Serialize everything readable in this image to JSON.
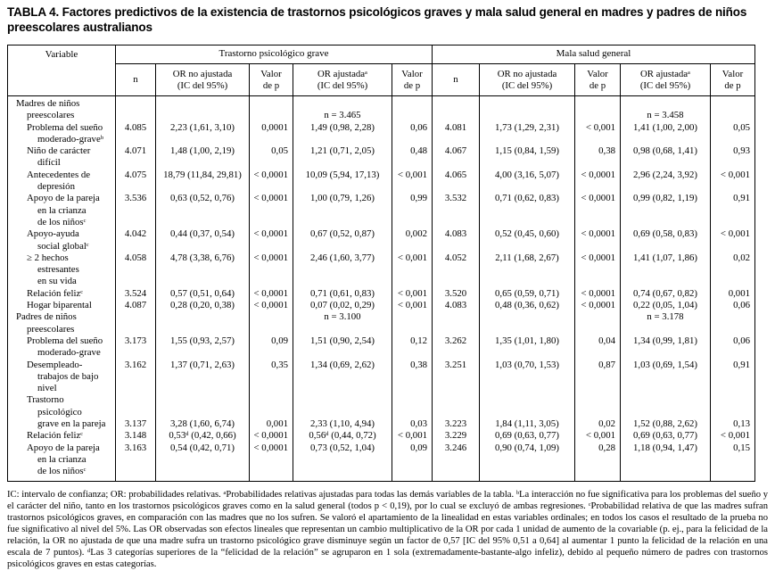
{
  "title": "TABLA 4. Factores predictivos de la existencia de trastornos psicológicos graves y mala salud general en madres y padres de niños preescolares australianos",
  "table": {
    "variable_header": "Variable",
    "groups": [
      {
        "label": "Trastorno psicológico grave"
      },
      {
        "label": "Mala salud general"
      }
    ],
    "subheaders": [
      [
        "n"
      ],
      [
        "OR no ajustada",
        "(IC del 95%)"
      ],
      [
        "Valor",
        "de p"
      ],
      [
        "OR ajustadaᵃ",
        "(IC del 95%)"
      ],
      [
        "Valor",
        "de p"
      ]
    ],
    "rows": [
      {
        "type": "section",
        "valign": "bottom",
        "label": [
          [
            0,
            "Madres de niños"
          ],
          [
            1,
            "preescolares"
          ]
        ],
        "cells": [
          "",
          "",
          "",
          "n = 3.465",
          "",
          "",
          "",
          "",
          "n = 3.458",
          ""
        ]
      },
      {
        "type": "data",
        "valign": "top",
        "label": [
          [
            1,
            "Problema del sueño"
          ],
          [
            2,
            "moderado-graveᵇ"
          ]
        ],
        "cells": [
          "4.085",
          "2,23 (1,61, 3,10)",
          "0,0001",
          "1,49 (0,98, 2,28)",
          "0,06",
          "4.081",
          "1,73 (1,29, 2,31)",
          "< 0,001",
          "1,41 (1,00, 2,00)",
          "0,05"
        ]
      },
      {
        "type": "data",
        "valign": "top",
        "label": [
          [
            1,
            "Niño de carácter"
          ],
          [
            2,
            "difícil"
          ]
        ],
        "cells": [
          "4.071",
          "1,48 (1,00, 2,19)",
          "0,05",
          "1,21 (0,71, 2,05)",
          "0,48",
          "4.067",
          "1,15 (0,84, 1,59)",
          "0,38",
          "0,98 (0,68, 1,41)",
          "0,93"
        ]
      },
      {
        "type": "data",
        "valign": "top",
        "label": [
          [
            1,
            "Antecedentes de"
          ],
          [
            2,
            "depresión"
          ]
        ],
        "cells": [
          "4.075",
          "18,79 (11,84, 29,81)",
          "< 0,0001",
          "10,09 (5,94, 17,13)",
          "< 0,001",
          "4.065",
          "4,00 (3,16, 5,07)",
          "< 0,0001",
          "2,96 (2,24, 3,92)",
          "< 0,001"
        ]
      },
      {
        "type": "data",
        "valign": "top",
        "label": [
          [
            1,
            "Apoyo de la pareja"
          ],
          [
            2,
            "en la crianza"
          ],
          [
            2,
            "de los niñosᶜ"
          ]
        ],
        "cells": [
          "3.536",
          "0,63 (0,52, 0,76)",
          "< 0,0001",
          "1,00 (0,79, 1,26)",
          "0,99",
          "3.532",
          "0,71 (0,62, 0,83)",
          "< 0,0001",
          "0,99 (0,82, 1,19)",
          "0,91"
        ]
      },
      {
        "type": "data",
        "valign": "top",
        "label": [
          [
            1,
            "Apoyo-ayuda"
          ],
          [
            2,
            "social globalᶜ"
          ]
        ],
        "cells": [
          "4.042",
          "0,44 (0,37, 0,54)",
          "< 0,0001",
          "0,67 (0,52, 0,87)",
          "0,002",
          "4.083",
          "0,52 (0,45, 0,60)",
          "< 0,0001",
          "0,69 (0,58, 0,83)",
          "< 0,001"
        ]
      },
      {
        "type": "data",
        "valign": "top",
        "label": [
          [
            1,
            "≥ 2 hechos"
          ],
          [
            2,
            "estresantes"
          ],
          [
            2,
            "en su vida"
          ]
        ],
        "cells": [
          "4.058",
          "4,78 (3,38, 6,76)",
          "< 0,0001",
          "2,46 (1,60, 3,77)",
          "< 0,001",
          "4.052",
          "2,11 (1,68, 2,67)",
          "< 0,0001",
          "1,41 (1,07, 1,86)",
          "0,02"
        ]
      },
      {
        "type": "data",
        "valign": "top",
        "label": [
          [
            1,
            "Relación felizᶜ"
          ]
        ],
        "cells": [
          "3.524",
          "0,57 (0,51, 0,64)",
          "< 0,0001",
          "0,71 (0,61, 0,83)",
          "< 0,001",
          "3.520",
          "0,65 (0,59, 0,71)",
          "< 0,0001",
          "0,74 (0,67, 0,82)",
          "0,001"
        ]
      },
      {
        "type": "data",
        "valign": "top",
        "label": [
          [
            1,
            "Hogar biparental"
          ]
        ],
        "cells": [
          "4.087",
          "0,28 (0,20, 0,38)",
          "< 0,0001",
          "0,07 (0,02, 0,29)",
          "< 0,001",
          "4.083",
          "0,48 (0,36, 0,62)",
          "< 0,0001",
          "0,22 (0,05, 1,04)",
          "0,06"
        ]
      },
      {
        "type": "section",
        "valign": "top",
        "label": [
          [
            0,
            "Padres de niños"
          ],
          [
            1,
            "preescolares"
          ]
        ],
        "cells": [
          "",
          "",
          "",
          "n = 3.100",
          "",
          "",
          "",
          "",
          "n = 3.178",
          ""
        ]
      },
      {
        "type": "data",
        "valign": "top",
        "label": [
          [
            1,
            "Problema del sueño"
          ],
          [
            2,
            "moderado-grave"
          ]
        ],
        "cells": [
          "3.173",
          "1,55 (0,93, 2,57)",
          "0,09",
          "1,51 (0,90, 2,54)",
          "0,12",
          "3.262",
          "1,35 (1,01, 1,80)",
          "0,04",
          "1,34 (0,99, 1,81)",
          "0,06"
        ]
      },
      {
        "type": "data",
        "valign": "top",
        "label": [
          [
            1,
            "Desempleado-"
          ],
          [
            2,
            "trabajos de bajo"
          ],
          [
            2,
            "nivel"
          ]
        ],
        "cells": [
          "3.162",
          "1,37 (0,71, 2,63)",
          "0,35",
          "1,34 (0,69, 2,62)",
          "0,38",
          "3.251",
          "1,03 (0,70, 1,53)",
          "0,87",
          "1,03 (0,69, 1,54)",
          "0,91"
        ]
      },
      {
        "type": "data",
        "valign": "bottom",
        "label": [
          [
            1,
            "Trastorno"
          ],
          [
            2,
            "psicológico"
          ],
          [
            2,
            "grave en la pareja"
          ]
        ],
        "cells": [
          "3.137",
          "3,28 (1,60, 6,74)",
          "0,001",
          "2,33 (1,10, 4,94)",
          "0,03",
          "3.223",
          "1,84 (1,11, 3,05)",
          "0,02",
          "1,52 (0,88, 2,62)",
          "0,13"
        ]
      },
      {
        "type": "data",
        "valign": "top",
        "label": [
          [
            1,
            "Relación felizᶜ"
          ]
        ],
        "cells": [
          "3.148",
          "0,53ᵈ (0,42, 0,66)",
          "< 0,0001",
          "0,56ᵈ (0,44, 0,72)",
          "< 0,001",
          "3.229",
          "0,69 (0,63, 0,77)",
          "< 0,001",
          "0,69 (0,63, 0,77)",
          "< 0,001"
        ]
      },
      {
        "type": "data",
        "valign": "top",
        "label": [
          [
            1,
            "Apoyo de la pareja"
          ],
          [
            2,
            "en la crianza"
          ],
          [
            2,
            "de los niñosᶜ"
          ]
        ],
        "cells": [
          "3.163",
          "0,54 (0,42, 0,71)",
          "< 0,0001",
          "0,73 (0,52, 1,04)",
          "0,09",
          "3.246",
          "0,90 (0,74, 1,09)",
          "0,28",
          "1,18 (0,94, 1,47)",
          "0,15"
        ]
      }
    ]
  },
  "footnote": "IC: intervalo de confianza; OR: probabilidades relativas. ᵃProbabilidades relativas ajustadas para todas las demás variables de la tabla. ᵇLa interacción no fue significativa para los problemas del sueño y el carácter del niño, tanto en los trastornos psicológicos graves como en la salud general (todos p < 0,19), por lo cual se excluyó de ambas regresiones. ᶜProbabilidad relativa de que las madres sufran trastornos psicológicos graves, en comparación con las madres que no los sufren. Se valoró el apartamiento de la linealidad en estas variables ordinales; en todos los casos el resultado de la prueba no fue significativo al nivel del 5%. Las OR observadas son efectos lineales que representan un cambio multiplicativo de la OR por cada 1 unidad de aumento de la covariable (p. ej., para la felicidad de la relación, la OR no ajustada de que una madre sufra un trastorno psicológico grave disminuye según un factor de 0,57 [IC del 95% 0,51 a 0,64] al aumentar 1 punto la felicidad de la relación en una escala de 7 puntos). ᵈLas 3 categorías superiores de la “felicidad de la relación” se agruparon en 1 sola (extremadamente-bastante-algo infeliz), debido al pequeño número de padres con trastornos psicológicos graves en estas categorías."
}
